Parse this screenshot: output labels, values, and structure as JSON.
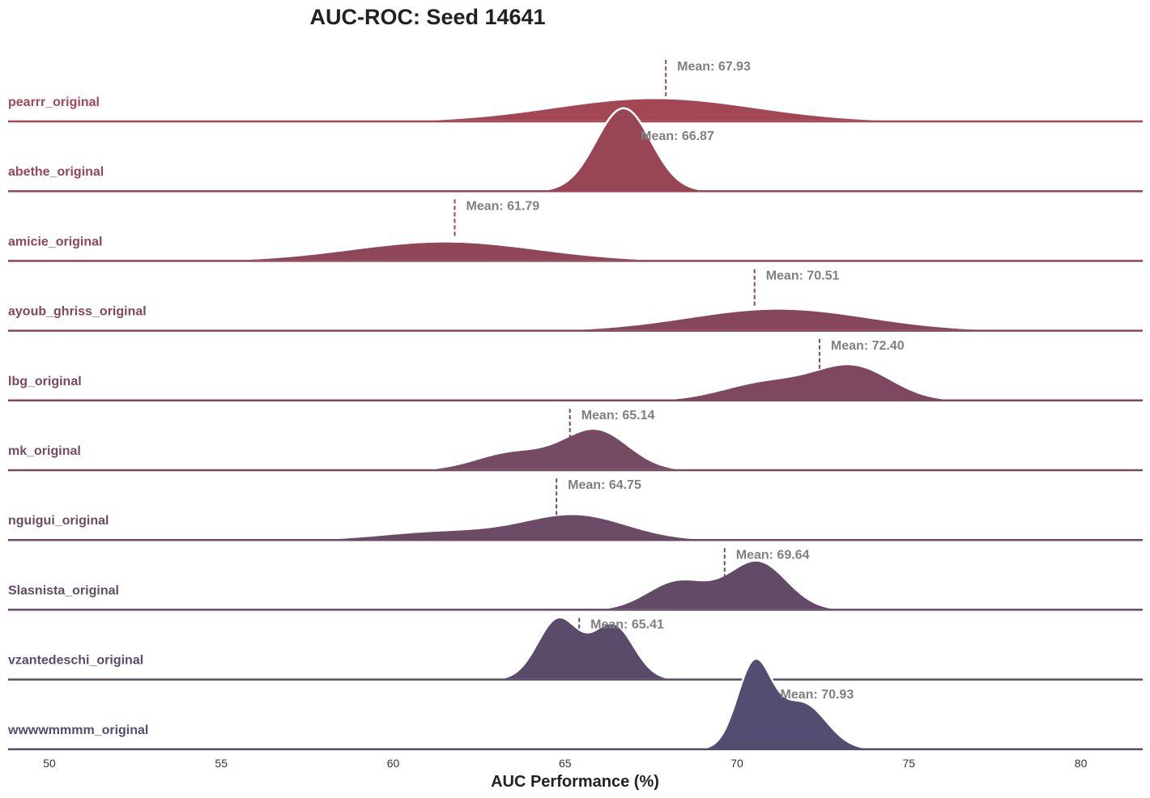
{
  "chart_data": {
    "type": "ridgeline",
    "title": "AUC-ROC: Seed 14641",
    "xlabel": "AUC Performance (%)",
    "ylabel": "",
    "xlim": [
      48.8,
      81.8
    ],
    "xticks": [
      50,
      55,
      60,
      65,
      70,
      75,
      80
    ],
    "xtick_labels": [
      "50",
      "55",
      "60",
      "65",
      "70",
      "75",
      "80"
    ],
    "mean_prefix": "Mean: ",
    "grid": false,
    "series": [
      {
        "name": "pearrr_original",
        "mean": 67.93,
        "mean_label": "Mean: 67.93",
        "color": "#a34755",
        "peaks": [
          {
            "mu": 67.6,
            "sigma": 2.9,
            "w": 1.0
          }
        ],
        "peak": 0.09,
        "range": [
          58,
          78
        ]
      },
      {
        "name": "abethe_original",
        "mean": 66.87,
        "mean_label": "Mean: 66.87",
        "color": "#984556",
        "peaks": [
          {
            "mu": 66.7,
            "sigma": 0.8,
            "w": 1.0
          }
        ],
        "peak": 0.32,
        "range": [
          64,
          69.5
        ]
      },
      {
        "name": "amicie_original",
        "mean": 61.79,
        "mean_label": "Mean: 61.79",
        "color": "#8e4658",
        "peaks": [
          {
            "mu": 61.5,
            "sigma": 2.7,
            "w": 1.0
          }
        ],
        "peak": 0.075,
        "range": [
          52,
          71
        ]
      },
      {
        "name": "ayoub_ghriss_original",
        "mean": 70.51,
        "mean_label": "Mean: 70.51",
        "color": "#86475c",
        "peaks": [
          {
            "mu": 71.2,
            "sigma": 2.6,
            "w": 1.0
          }
        ],
        "peak": 0.085,
        "range": [
          62,
          79
        ]
      },
      {
        "name": "lbg_original",
        "mean": 72.4,
        "mean_label": "Mean: 72.40",
        "color": "#7e4860",
        "peaks": [
          {
            "mu": 73.4,
            "sigma": 1.1,
            "w": 1.0
          },
          {
            "mu": 70.9,
            "sigma": 1.3,
            "w": 0.55
          }
        ],
        "peak": 0.14,
        "range": [
          67,
          78
        ]
      },
      {
        "name": "mk_original",
        "mean": 65.14,
        "mean_label": "Mean: 65.14",
        "color": "#754a63",
        "peaks": [
          {
            "mu": 65.9,
            "sigma": 0.95,
            "w": 1.0
          },
          {
            "mu": 63.5,
            "sigma": 1.1,
            "w": 0.45
          }
        ],
        "peak": 0.16,
        "range": [
          60,
          70
        ]
      },
      {
        "name": "nguigui_original",
        "mean": 64.75,
        "mean_label": "Mean: 64.75",
        "color": "#6b4b66",
        "peaks": [
          {
            "mu": 65.3,
            "sigma": 1.5,
            "w": 1.0
          },
          {
            "mu": 61.5,
            "sigma": 1.8,
            "w": 0.35
          }
        ],
        "peak": 0.1,
        "range": [
          56,
          72
        ]
      },
      {
        "name": "Slasnista_original",
        "mean": 69.64,
        "mean_label": "Mean: 69.64",
        "color": "#634b68",
        "peaks": [
          {
            "mu": 70.6,
            "sigma": 0.85,
            "w": 1.0
          },
          {
            "mu": 68.3,
            "sigma": 0.9,
            "w": 0.6
          }
        ],
        "peak": 0.19,
        "range": [
          65,
          74
        ]
      },
      {
        "name": "vzantedeschi_original",
        "mean": 65.41,
        "mean_label": "Mean: 65.41",
        "color": "#5a4b6b",
        "peaks": [
          {
            "mu": 64.8,
            "sigma": 0.6,
            "w": 1.0
          },
          {
            "mu": 66.4,
            "sigma": 0.6,
            "w": 0.9
          }
        ],
        "peak": 0.24,
        "range": [
          62,
          69
        ]
      },
      {
        "name": "wwwwmmmm_original",
        "mean": 70.93,
        "mean_label": "Mean: 70.93",
        "color": "#524d71",
        "peaks": [
          {
            "mu": 70.5,
            "sigma": 0.5,
            "w": 1.0
          },
          {
            "mu": 71.9,
            "sigma": 0.7,
            "w": 0.55
          }
        ],
        "peak": 0.35,
        "range": [
          68,
          74
        ]
      }
    ]
  }
}
